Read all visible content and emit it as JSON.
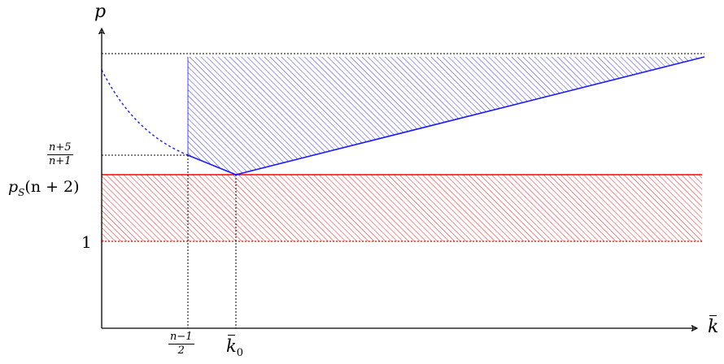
{
  "axes": {
    "y_label": "p",
    "x_label": "k",
    "x_label_accent": "bar"
  },
  "y_ticks": {
    "frac_num": "n+5",
    "frac_den": "n+1",
    "ps_label": "p",
    "ps_sub": "S",
    "ps_arg": "(n + 2)",
    "one": "1"
  },
  "x_ticks": {
    "frac_num": "n−1",
    "frac_den": "2",
    "k0_label": "k",
    "k0_sub": "0"
  },
  "colors": {
    "blue": "#1a1aff",
    "red": "#ff0000",
    "axis": "#000000"
  }
}
